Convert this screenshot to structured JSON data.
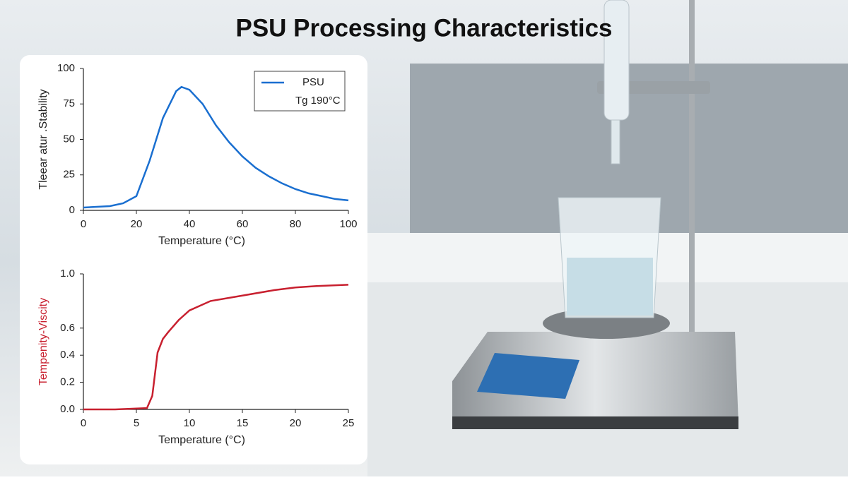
{
  "title": "PSU Processing Characteristics",
  "chart_data": [
    {
      "type": "line",
      "xlabel": "Temperature (°C)",
      "ylabel": "Tleear atur .Stability",
      "x": [
        0,
        5,
        10,
        15,
        20,
        25,
        30,
        35,
        37,
        40,
        45,
        50,
        55,
        60,
        65,
        70,
        75,
        80,
        85,
        90,
        95,
        100
      ],
      "series": [
        {
          "name": "PSU",
          "color": "#1a6fd0",
          "values": [
            2,
            2.5,
            3,
            5,
            10,
            35,
            65,
            84,
            87,
            85,
            75,
            60,
            48,
            38,
            30,
            24,
            19,
            15,
            12,
            10,
            8,
            7
          ]
        }
      ],
      "annotation": "Tg 190°C",
      "xlim": [
        0,
        100
      ],
      "xticks": [
        0,
        20,
        40,
        60,
        80,
        100
      ],
      "ylim": [
        0,
        100
      ],
      "yticks": [
        0,
        25,
        50,
        75,
        100
      ],
      "legend": "upper right"
    },
    {
      "type": "line",
      "xlabel": "Temperature (°C)",
      "ylabel": "Tempenity-Viscity",
      "x": [
        0,
        3,
        6,
        6.5,
        7,
        7.5,
        8,
        9,
        10,
        12,
        15,
        18,
        20,
        22,
        25
      ],
      "series": [
        {
          "name": null,
          "color": "#c8202f",
          "values": [
            0,
            0,
            0.01,
            0.1,
            0.42,
            0.52,
            0.57,
            0.66,
            0.73,
            0.8,
            0.84,
            0.88,
            0.9,
            0.91,
            0.92
          ]
        }
      ],
      "xlim": [
        0,
        25
      ],
      "xticks": [
        0,
        5,
        10,
        15,
        20,
        25
      ],
      "ylim": [
        0,
        1.0
      ],
      "yticks": [
        {
          "value": 0,
          "label": "0.0"
        },
        {
          "value": 0.2,
          "label": "0.2"
        },
        {
          "value": 0.4,
          "label": "0.4"
        },
        {
          "value": 0.6,
          "label": "0.6"
        },
        {
          "value": 1.0,
          "label": "1.0"
        }
      ],
      "ylabel_color": "#c8202f"
    }
  ]
}
